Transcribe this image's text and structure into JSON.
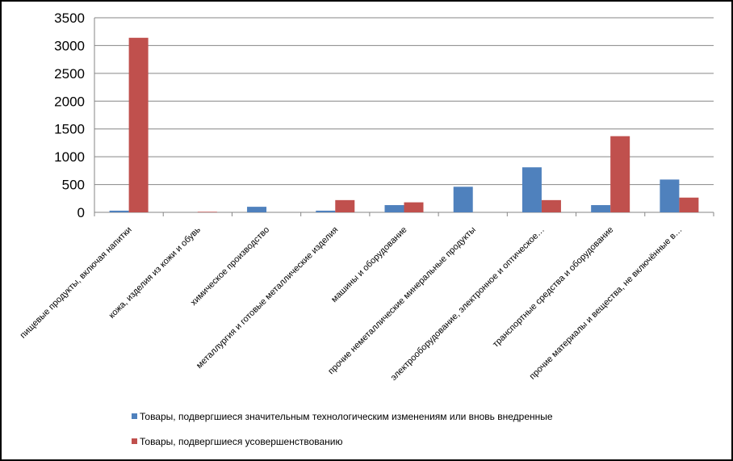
{
  "chart_data": {
    "type": "bar",
    "categories": [
      "пищевые продукты, включая напитки",
      "кожа, изделия из кожи и обувь",
      "химическое производство",
      "металлургия и готовые металлические изделия",
      "машины и оборудование",
      "прочие неметаллические минеральные продукты",
      "электрооборудование, электронное и оптическое…",
      "транспортные средства и оборудование",
      "прочие материалы и вещества, не включённые в…"
    ],
    "series": [
      {
        "name": "Товары, подвергшиеся значительным технологическим изменениям или вновь внедренные",
        "color": "#4f81bd",
        "values": [
          30,
          0,
          100,
          30,
          130,
          460,
          810,
          130,
          590
        ]
      },
      {
        "name": "Товары, подвергшиеся усовершенствованию",
        "color": "#c0504d",
        "values": [
          3140,
          10,
          0,
          220,
          180,
          0,
          220,
          1370,
          265
        ]
      }
    ],
    "ylim": [
      0,
      3500
    ],
    "yticks": [
      "0",
      "500",
      "1000",
      "1500",
      "2000",
      "2500",
      "3000",
      "3500"
    ],
    "grid": true,
    "legend_position": "bottom"
  }
}
